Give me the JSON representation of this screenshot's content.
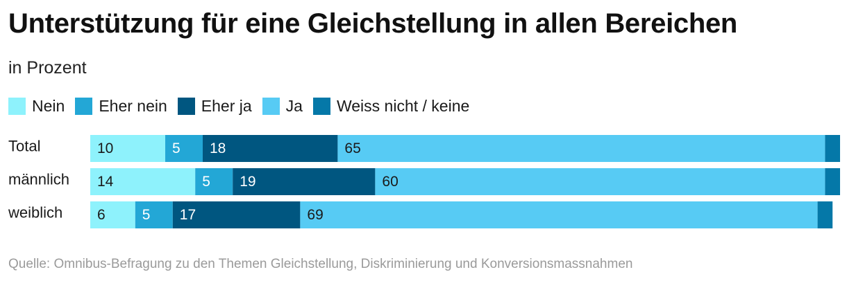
{
  "header": {
    "title": "Unterstützung für eine Gleichstellung in allen Bereichen",
    "subtitle": "in Prozent"
  },
  "colors": {
    "nein": "#8ef2fc",
    "eher_nein": "#23a7d6",
    "eher_ja": "#005680",
    "ja": "#57cbf4",
    "weiss_nicht": "#0578a8",
    "label_dark": "#1a1a1a",
    "label_light": "#ffffff"
  },
  "chart_data": {
    "type": "bar",
    "orientation": "horizontal",
    "stacked": true,
    "title": "Unterstützung für eine Gleichstellung in allen Bereichen",
    "subtitle": "in Prozent",
    "categories": [
      "Total",
      "männlich",
      "weiblich"
    ],
    "series": [
      {
        "name": "Nein",
        "values": [
          10,
          14,
          6
        ]
      },
      {
        "name": "Eher nein",
        "values": [
          5,
          5,
          5
        ]
      },
      {
        "name": "Eher ja",
        "values": [
          18,
          19,
          17
        ]
      },
      {
        "name": "Ja",
        "values": [
          65,
          60,
          69
        ]
      },
      {
        "name": "Weiss nicht / keine",
        "values": [
          2,
          2,
          2
        ]
      }
    ],
    "xlim": [
      0,
      100
    ],
    "grid": false,
    "legend_position": "top-left"
  },
  "source": "Quelle: Omnibus-Befragung zu den Themen Gleichstellung, Diskriminierung und Konversionsmassnahmen"
}
